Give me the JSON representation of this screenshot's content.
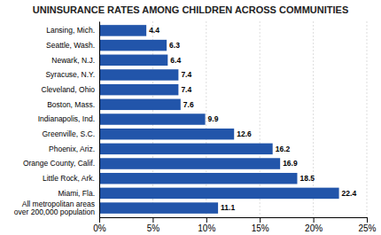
{
  "chart_data": {
    "type": "bar",
    "orientation": "horizontal",
    "title": "UNINSURANCE RATES AMONG CHILDREN ACROSS COMMUNITIES",
    "categories": [
      "Lansing, Mich.",
      "Seattle, Wash.",
      "Newark, N.J.",
      "Syracuse, N.Y.",
      "Cleveland, Ohio",
      "Boston, Mass.",
      "Indianapolis, Ind.",
      "Greenville, S.C.",
      "Phoenix, Ariz.",
      "Orange County, Calif.",
      "Little Rock, Ark.",
      "Miami, Fla.",
      "All metropolitan areas\nover 200,000 population"
    ],
    "values": [
      4.4,
      6.3,
      6.4,
      7.4,
      7.4,
      7.6,
      9.9,
      12.6,
      16.2,
      16.9,
      18.5,
      22.4,
      11.1
    ],
    "color": "#2255aa",
    "xlim": [
      0,
      25
    ],
    "xticks": [
      {
        "value": 0,
        "label": "0%"
      },
      {
        "value": 5,
        "label": "5%"
      },
      {
        "value": 10,
        "label": "10%"
      },
      {
        "value": 15,
        "label": "15%"
      },
      {
        "value": 20,
        "label": "20%"
      },
      {
        "value": 25,
        "label": "25%"
      }
    ],
    "grid": true,
    "data_labels": true
  }
}
